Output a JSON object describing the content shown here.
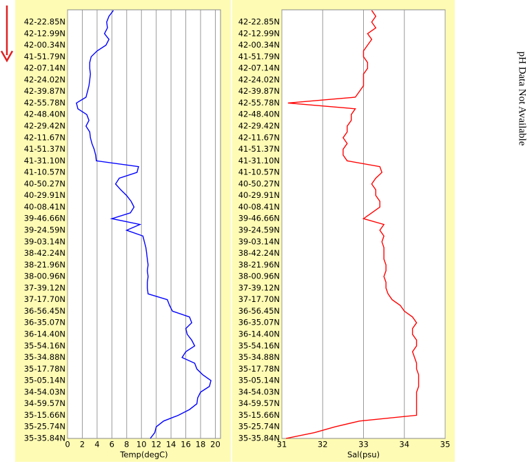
{
  "chart_data": [
    {
      "type": "line",
      "x_label": "Temp(degC)",
      "categories": [
        null,
        null,
        "42-22.85N",
        null,
        "42-12.99N",
        null,
        "42-00.34N",
        null,
        "41-51.79N",
        null,
        "42-07.14N",
        null,
        "42-24.02N",
        null,
        "42-39.87N",
        null,
        "42-55.78N",
        null,
        "42-48.40N",
        null,
        "42-29.42N",
        null,
        "42-11.67N",
        null,
        "41-51.37N",
        null,
        "41-31.10N",
        null,
        "41-10.57N",
        null,
        "40-50.27N",
        null,
        "40-29.91N",
        null,
        "40-08.41N",
        null,
        "39-46.66N",
        null,
        "39-24.59N",
        null,
        "39-03.14N",
        null,
        "38-42.24N",
        null,
        "38-21.96N",
        null,
        "38-00.96N",
        null,
        "37-39.12N",
        null,
        "37-17.70N",
        null,
        "36-56.45N",
        null,
        "36-35.07N",
        null,
        "36-14.40N",
        null,
        "35-54.16N",
        null,
        "35-34.88N",
        null,
        "35-17.78N",
        null,
        "35-05.14N",
        null,
        "34-54.03N",
        null,
        "34-59.57N",
        null,
        "35-15.66N",
        null,
        "35-25.74N",
        null,
        "35-35.84N"
      ],
      "color": "#0000ff",
      "values": [
        6.2,
        5.6,
        5.3,
        5.4,
        5.0,
        5.6,
        5.2,
        4.0,
        3.2,
        3.0,
        3.0,
        3.1,
        3.0,
        2.9,
        2.7,
        2.5,
        1.2,
        1.4,
        2.6,
        2.9,
        2.5,
        3.0,
        3.1,
        3.3,
        3.6,
        3.8,
        3.9,
        9.6,
        9.4,
        7.0,
        6.5,
        7.2,
        8.0,
        8.6,
        9.0,
        8.5,
        6.0,
        9.8,
        8.0,
        10.2,
        10.4,
        10.6,
        10.7,
        10.8,
        10.9,
        10.8,
        10.9,
        10.8,
        10.8,
        10.9,
        13.5,
        13.8,
        14.2,
        16.5,
        16.8,
        16.0,
        16.2,
        16.8,
        17.2,
        16.0,
        15.5,
        17.2,
        17.5,
        18.3,
        19.4,
        19.2,
        18.0,
        17.6,
        17.5,
        16.5,
        15.0,
        13.0,
        12.0,
        11.8,
        11.2
      ],
      "xlim": [
        0,
        20.7
      ],
      "xticks": [
        0,
        2,
        4,
        6,
        8,
        10,
        12,
        14,
        16,
        18,
        20
      ],
      "grid": true
    },
    {
      "type": "line",
      "x_label": "Sal(psu)",
      "categories": [
        null,
        null,
        "42-22.85N",
        null,
        "42-12.99N",
        null,
        "42-00.34N",
        null,
        "41-51.79N",
        null,
        "42-07.14N",
        null,
        "42-24.02N",
        null,
        "42-39.87N",
        null,
        "42-55.78N",
        null,
        "42-48.40N",
        null,
        "42-29.42N",
        null,
        "42-11.67N",
        null,
        "41-51.37N",
        null,
        "41-31.10N",
        null,
        "41-10.57N",
        null,
        "40-50.27N",
        null,
        "40-29.91N",
        null,
        "40-08.41N",
        null,
        "39-46.66N",
        null,
        "39-24.59N",
        null,
        "39-03.14N",
        null,
        "38-42.24N",
        null,
        "38-21.96N",
        null,
        "38-00.96N",
        null,
        "37-39.12N",
        null,
        "37-17.70N",
        null,
        "36-56.45N",
        null,
        "36-35.07N",
        null,
        "36-14.40N",
        null,
        "35-54.16N",
        null,
        "35-34.88N",
        null,
        "35-17.78N",
        null,
        "35-05.14N",
        null,
        "34-54.03N",
        null,
        "34-59.57N",
        null,
        "35-15.66N",
        null,
        "35-25.74N",
        null,
        "35-35.84N"
      ],
      "color": "#ff0000",
      "values": [
        33.2,
        33.3,
        33.2,
        33.3,
        33.1,
        33.2,
        33.1,
        33.0,
        33.0,
        33.1,
        33.1,
        33.0,
        33.0,
        33.0,
        32.9,
        32.8,
        31.15,
        32.8,
        32.7,
        32.7,
        32.6,
        32.6,
        32.5,
        32.6,
        32.5,
        32.5,
        32.6,
        33.4,
        33.45,
        33.3,
        33.2,
        33.3,
        33.3,
        33.4,
        33.4,
        33.2,
        33.0,
        33.5,
        33.4,
        33.5,
        33.45,
        33.5,
        33.5,
        33.5,
        33.55,
        33.55,
        33.5,
        33.55,
        33.55,
        33.6,
        33.7,
        33.9,
        34.0,
        34.2,
        34.3,
        34.2,
        34.2,
        34.3,
        34.3,
        34.2,
        34.25,
        34.3,
        34.3,
        34.35,
        34.35,
        34.35,
        34.3,
        34.3,
        34.3,
        34.3,
        34.3,
        32.9,
        32.3,
        31.8,
        31.1
      ],
      "xlim": [
        31,
        35
      ],
      "xticks": [
        31,
        32,
        33,
        34,
        35
      ],
      "grid": true
    }
  ],
  "note": "pH Data Not Available"
}
